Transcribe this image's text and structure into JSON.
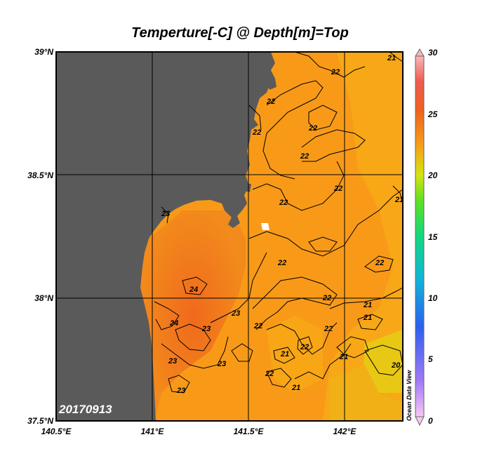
{
  "title": "Temperture[-C] @ Depth[m]=Top",
  "date_label": "20170913",
  "watermark": "Ocean Data View",
  "colors": {
    "land": "#5a5a5a",
    "sea_main": "#f89a18",
    "sea_warm": "#f2761a",
    "sea_cool": "#f8b416",
    "sea_coolest": "#e4d014"
  },
  "axes": {
    "y_ticks": [
      "39°N",
      "38.5°N",
      "38°N",
      "37.5°N"
    ],
    "x_ticks": [
      "140.5°E",
      "141°E",
      "141.5°E",
      "142°E"
    ]
  },
  "colorbar": {
    "ticks": [
      "30",
      "25",
      "20",
      "15",
      "10",
      "5",
      "0"
    ],
    "range": [
      0,
      30
    ],
    "colors": [
      "#f8c8f4",
      "#a078f8",
      "#2a60f0",
      "#10b4d8",
      "#10d880",
      "#60e020",
      "#d4e410",
      "#f8a018",
      "#f06020",
      "#f05a50",
      "#f8b8b8"
    ]
  },
  "chart_data": {
    "type": "heatmap",
    "title": "Temperture[-C] @ Depth[m]=Top",
    "x_range": [
      140.5,
      142.3
    ],
    "y_range": [
      37.5,
      39.0
    ],
    "value_range": [
      0,
      30
    ],
    "contour_labels": [
      "22",
      "22",
      "22",
      "22",
      "22",
      "22",
      "22",
      "22",
      "22",
      "22",
      "22",
      "22",
      "23",
      "23",
      "23",
      "23",
      "23",
      "23",
      "24",
      "24",
      "21",
      "21",
      "21",
      "21",
      "21",
      "21",
      "21",
      "20",
      "22",
      "22"
    ]
  }
}
